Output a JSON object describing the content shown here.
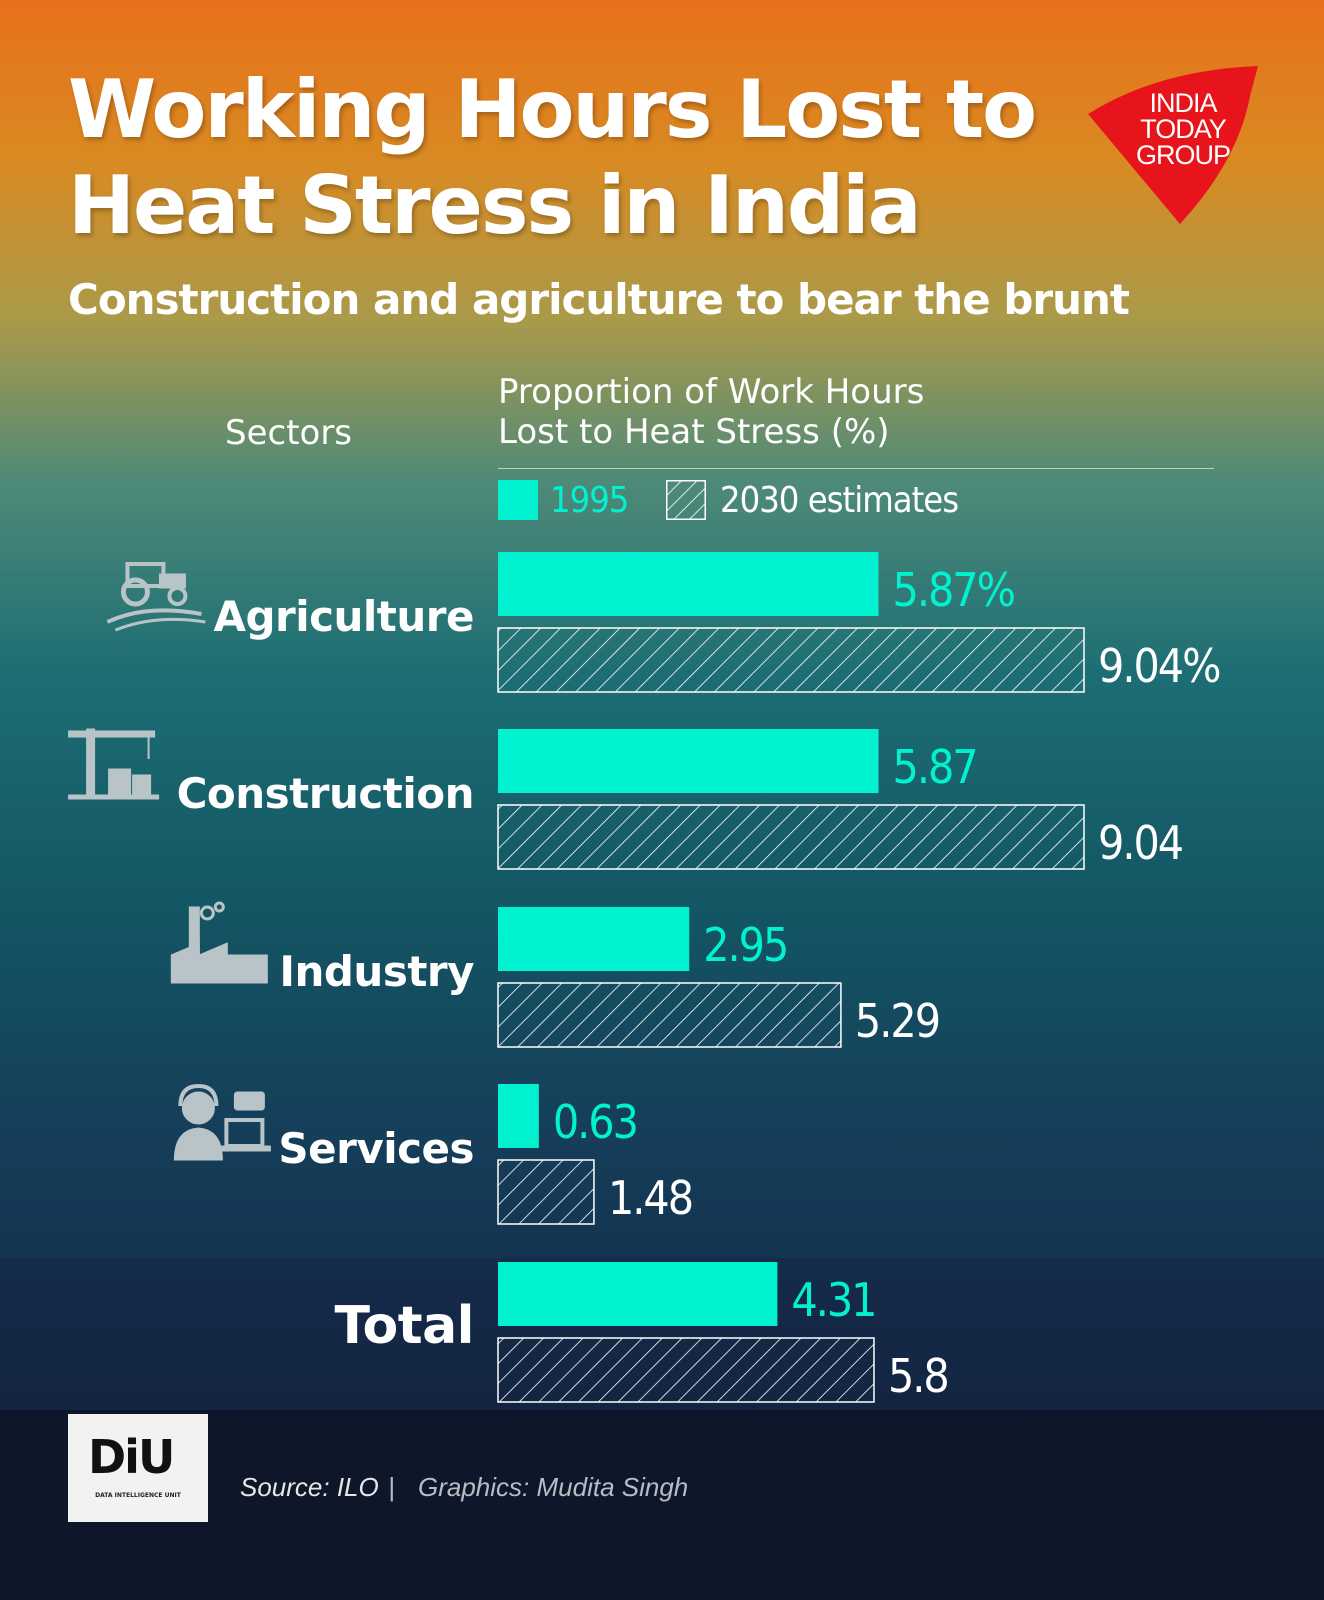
{
  "header": {
    "title": "Working Hours Lost to Heat Stress in India",
    "subtitle": "Construction and agriculture to bear the brunt",
    "logo_lines": [
      "INDIA",
      "TODAY",
      "GROUP"
    ]
  },
  "table_headers": {
    "sectors": "Sectors",
    "measure_line1": "Proportion of Work Hours",
    "measure_line2": "Lost to Heat Stress (%)"
  },
  "colors": {
    "bar_1995": "#00f2d0",
    "bar_2030_stroke": "#ffffff",
    "label_1995": "#00f2d0",
    "label_2030": "#ffffff",
    "logo_red": "#e8141c"
  },
  "chart_data": {
    "type": "bar",
    "orientation": "horizontal",
    "title": "Working Hours Lost to Heat Stress in India",
    "subtitle": "Construction and agriculture to bear the brunt",
    "xlabel": "Proportion of Work Hours Lost to Heat Stress (%)",
    "ylabel": "Sectors",
    "categories": [
      "Agriculture",
      "Construction",
      "Industry",
      "Services",
      "Total"
    ],
    "icons": [
      "tractor-icon",
      "crane-icon",
      "factory-icon",
      "call-center-icon",
      ""
    ],
    "series": [
      {
        "name": "1995",
        "values": [
          5.87,
          5.87,
          2.95,
          0.63,
          4.31
        ],
        "labels": [
          "5.87%",
          "5.87",
          "2.95",
          "0.63",
          "4.31"
        ]
      },
      {
        "name": "2030 estimates",
        "values": [
          9.04,
          9.04,
          5.29,
          1.48,
          5.8
        ],
        "labels": [
          "9.04%",
          "9.04",
          "5.29",
          "1.48",
          "5.8"
        ]
      }
    ],
    "xlim": [
      0,
      9.04
    ],
    "grid": false,
    "legend_position": "top"
  },
  "footer": {
    "diu_mark": "DiU",
    "diu_subtitle": "DATA INTELLIGENCE UNIT",
    "source": "Source: ILO",
    "separator": "|",
    "graphics": "Graphics: Mudita Singh"
  }
}
